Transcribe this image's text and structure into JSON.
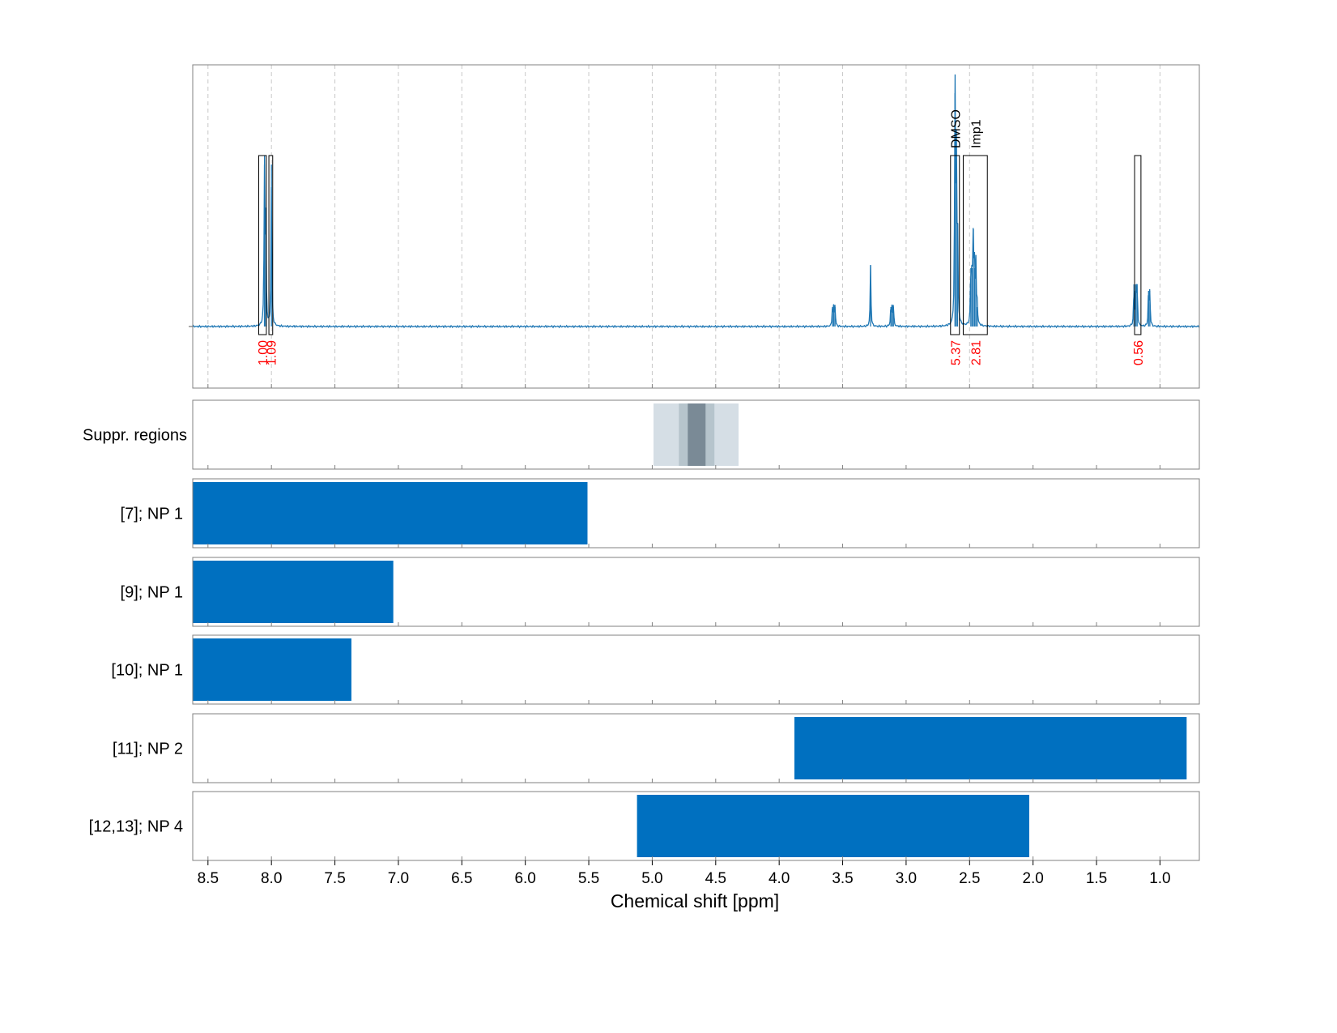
{
  "chart_data": {
    "type": "line",
    "title": "",
    "xlabel": "Chemical shift [ppm]",
    "ylabel": "",
    "x_reversed": true,
    "xlim": [
      8.62,
      0.69
    ],
    "xticks": [
      8.5,
      8.0,
      7.5,
      7.0,
      6.5,
      6.0,
      5.5,
      5.0,
      4.5,
      4.0,
      3.5,
      3.0,
      2.5,
      2.0,
      1.5,
      1.0
    ],
    "xtick_labels": [
      "8.5",
      "8.0",
      "7.5",
      "7.0",
      "6.5",
      "6.0",
      "5.5",
      "5.0",
      "4.5",
      "4.0",
      "3.5",
      "3.0",
      "2.5",
      "2.0",
      "1.5",
      "1.0"
    ],
    "grid": true,
    "spectrum": {
      "color": "#1f77b4",
      "peaks": [
        {
          "ppm": 8.055,
          "height": 0.5
        },
        {
          "ppm": 8.045,
          "height": 0.36
        },
        {
          "ppm": 8.0,
          "height": 0.5
        },
        {
          "ppm": 3.58,
          "height": 0.06
        },
        {
          "ppm": 3.57,
          "height": 0.06
        },
        {
          "ppm": 3.56,
          "height": 0.06
        },
        {
          "ppm": 3.28,
          "height": 0.19
        },
        {
          "ppm": 3.12,
          "height": 0.06
        },
        {
          "ppm": 3.11,
          "height": 0.06
        },
        {
          "ppm": 3.1,
          "height": 0.06
        },
        {
          "ppm": 2.615,
          "height": 0.72
        },
        {
          "ppm": 2.605,
          "height": 0.56
        },
        {
          "ppm": 2.595,
          "height": 0.32
        },
        {
          "ppm": 2.49,
          "height": 0.18
        },
        {
          "ppm": 2.48,
          "height": 0.18
        },
        {
          "ppm": 2.47,
          "height": 0.3
        },
        {
          "ppm": 2.46,
          "height": 0.18
        },
        {
          "ppm": 2.45,
          "height": 0.18
        },
        {
          "ppm": 2.44,
          "height": 0.06
        },
        {
          "ppm": 1.205,
          "height": 0.13
        },
        {
          "ppm": 1.19,
          "height": 0.13
        },
        {
          "ppm": 1.18,
          "height": 0.13
        },
        {
          "ppm": 1.09,
          "height": 0.11
        },
        {
          "ppm": 1.08,
          "height": 0.11
        }
      ]
    },
    "integration_regions": [
      {
        "from": 8.1,
        "to": 8.04,
        "value": "1.00",
        "label": ""
      },
      {
        "from": 8.02,
        "to": 7.99,
        "value": "1.09",
        "label": ""
      },
      {
        "from": 2.65,
        "to": 2.58,
        "value": "5.37",
        "label": "DMSO"
      },
      {
        "from": 2.55,
        "to": 2.36,
        "value": "2.81",
        "label": "Imp1"
      },
      {
        "from": 1.2,
        "to": 1.15,
        "value": "0.56",
        "label": ""
      }
    ],
    "suppression": {
      "label": "Suppr. regions",
      "bands": [
        {
          "from": 4.99,
          "to": 4.32,
          "color": "#d5dee5"
        },
        {
          "from": 4.79,
          "to": 4.51,
          "color": "#b6c4cc"
        },
        {
          "from": 4.72,
          "to": 4.58,
          "color": "#7a8a96"
        }
      ]
    },
    "series": [
      {
        "name": "[7]; NP 1",
        "from": 8.62,
        "to": 5.51,
        "color": "#0070c0"
      },
      {
        "name": "[9]; NP 1",
        "from": 8.62,
        "to": 7.04,
        "color": "#0070c0"
      },
      {
        "name": "[10]; NP 1",
        "from": 8.62,
        "to": 7.37,
        "color": "#0070c0"
      },
      {
        "name": "[11]; NP 2",
        "from": 3.88,
        "to": 0.79,
        "color": "#0070c0"
      },
      {
        "name": "[12,13]; NP 4",
        "from": 5.12,
        "to": 2.03,
        "color": "#0070c0"
      }
    ]
  }
}
